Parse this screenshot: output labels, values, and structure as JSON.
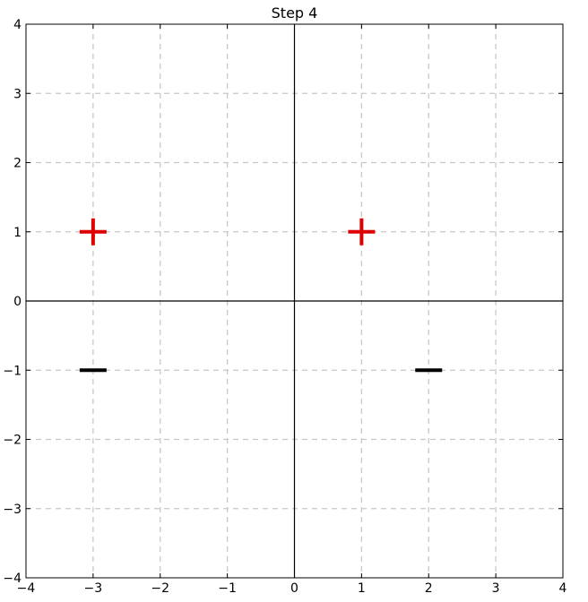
{
  "chart_data": {
    "type": "scatter",
    "title": "Step 4",
    "xlabel": "",
    "ylabel": "",
    "xlim": [
      -4,
      4
    ],
    "ylim": [
      -4,
      4
    ],
    "xticks": [
      -4,
      -3,
      -2,
      -1,
      0,
      1,
      2,
      3,
      4
    ],
    "yticks": [
      -4,
      -3,
      -2,
      -1,
      0,
      1,
      2,
      3,
      4
    ],
    "xtick_labels": [
      "−4",
      "−3",
      "−2",
      "−1",
      "0",
      "1",
      "2",
      "3",
      "4"
    ],
    "ytick_labels": [
      "−4",
      "−3",
      "−2",
      "−1",
      "0",
      "1",
      "2",
      "3",
      "4"
    ],
    "grid": true,
    "axis_lines": true,
    "series": [
      {
        "marker": "plus",
        "color": "#dd0000",
        "points": [
          {
            "x": -3,
            "y": 1
          },
          {
            "x": 1,
            "y": 1
          }
        ]
      },
      {
        "marker": "minus",
        "color": "#000000",
        "points": [
          {
            "x": -3,
            "y": -1
          },
          {
            "x": 2,
            "y": -1
          }
        ]
      }
    ]
  }
}
